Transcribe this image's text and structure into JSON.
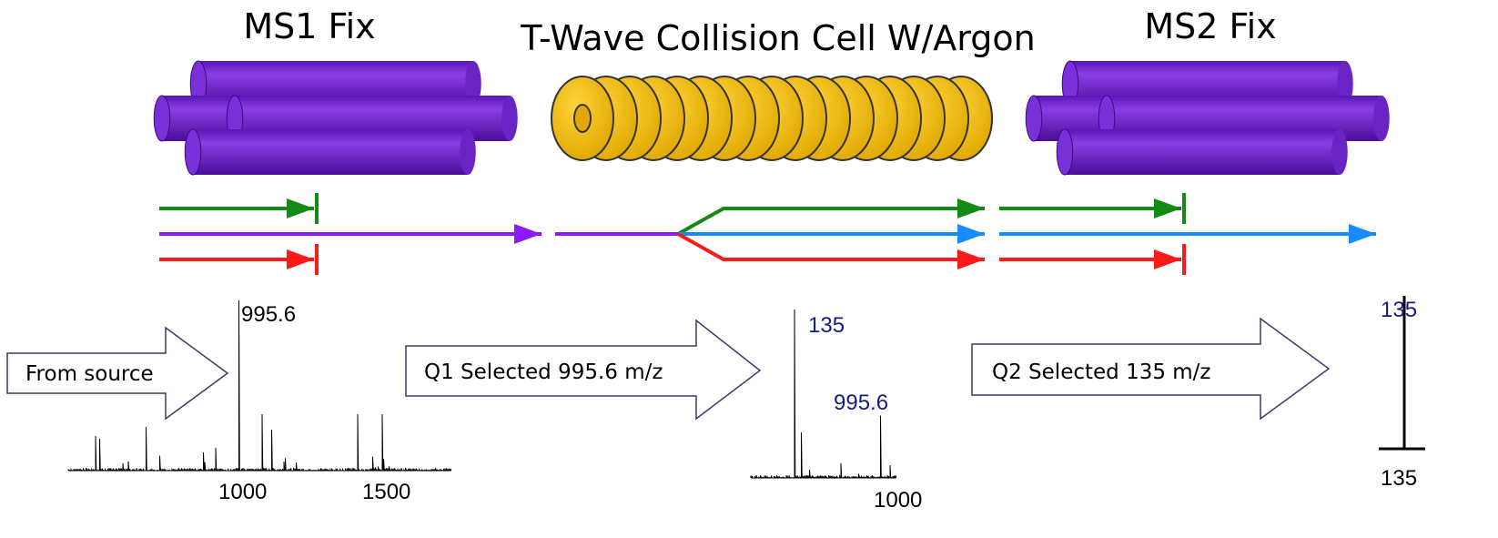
{
  "stages": [
    {
      "title": "MS1 Fix"
    },
    {
      "title": "T-Wave Collision Cell W/Argon"
    },
    {
      "title": "MS2 Fix"
    }
  ],
  "flow_arrows": [
    {
      "label": "From source"
    },
    {
      "label": "Q1 Selected 995.6 m/z"
    },
    {
      "label": "Q2 Selected 135 m/z"
    }
  ],
  "spectra": [
    {
      "peak_labels": [
        "995.6"
      ],
      "axis_labels": [
        "1000",
        "1500"
      ]
    },
    {
      "peak_labels": [
        "135",
        "995.6"
      ],
      "axis_labels": [
        "1000"
      ]
    },
    {
      "peak_labels": [
        "135"
      ],
      "axis_labels": [
        "135"
      ]
    }
  ]
}
